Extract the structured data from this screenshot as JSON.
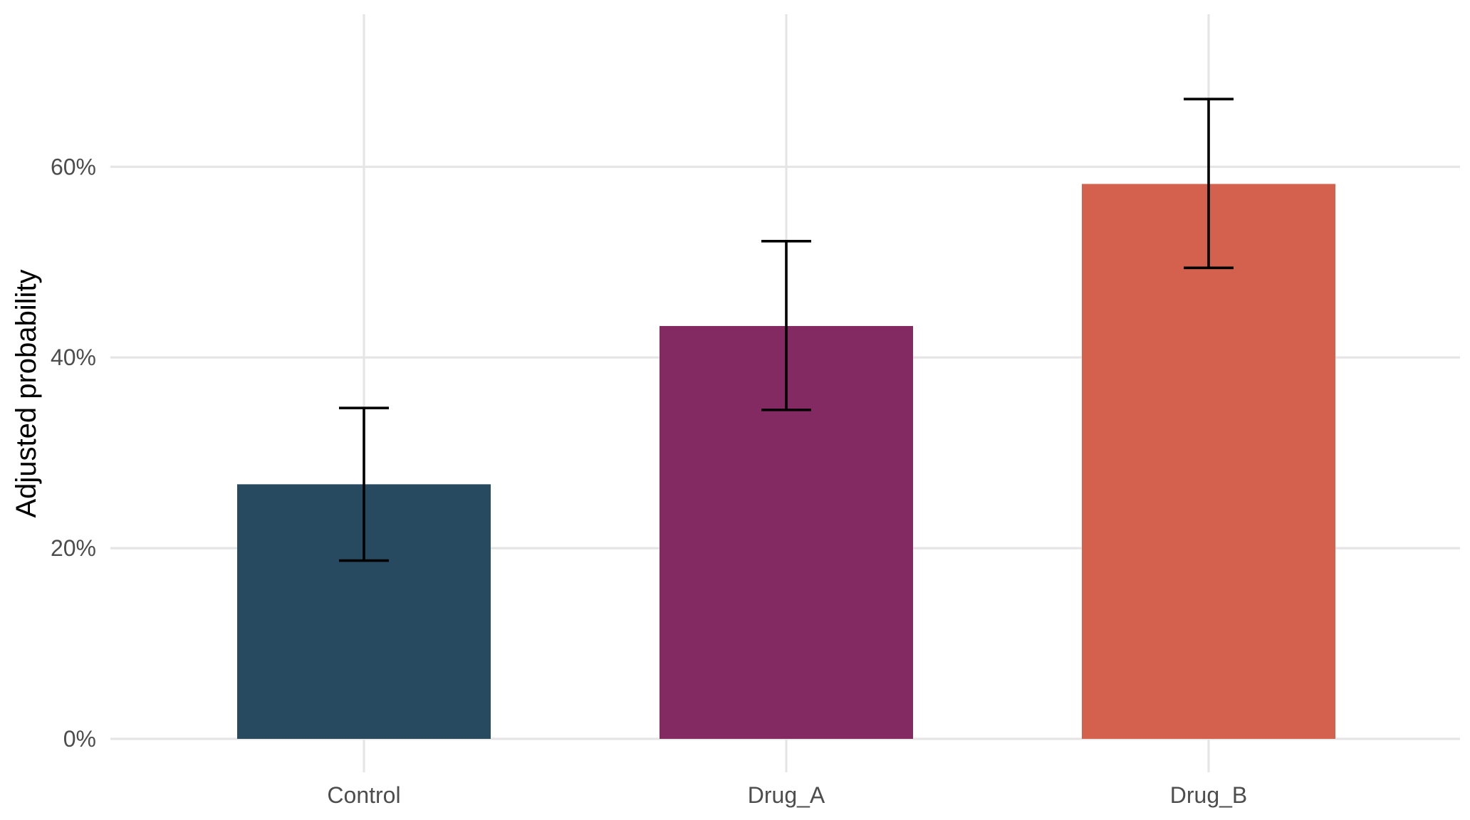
{
  "chart_data": {
    "type": "bar",
    "title": "",
    "xlabel": "",
    "ylabel": "Adjusted probability",
    "categories": [
      "Control",
      "Drug_A",
      "Drug_B"
    ],
    "values": [
      0.267,
      0.433,
      0.582
    ],
    "error_low": [
      0.187,
      0.345,
      0.494
    ],
    "error_high": [
      0.347,
      0.522,
      0.671
    ],
    "colors": [
      "#284a60",
      "#842a63",
      "#d3614e"
    ],
    "y_format": "percent",
    "ylim": [
      0,
      0.76
    ],
    "y_ticks": [
      0,
      0.2,
      0.4,
      0.6
    ],
    "y_tick_labels": [
      "0%",
      "20%",
      "40%",
      "60%"
    ],
    "grid": true,
    "legend": "none"
  }
}
